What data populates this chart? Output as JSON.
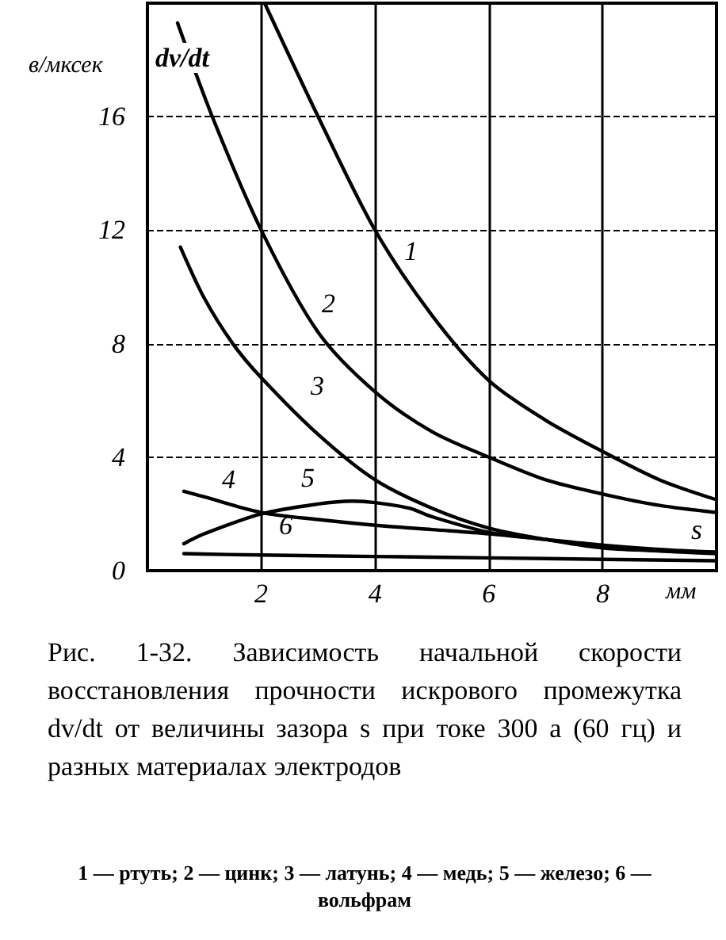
{
  "chart_data": {
    "type": "line",
    "ylabel": "в/мксек",
    "xlabel": "мм",
    "xlim": [
      0,
      10
    ],
    "ylim": [
      0,
      20
    ],
    "xticks": [
      2,
      4,
      6,
      8
    ],
    "yticks": [
      0,
      4,
      8,
      12,
      16
    ],
    "grid": true,
    "marker": "none",
    "line_style": "solid",
    "series": [
      {
        "color": "#000000",
        "x": [
          2.06,
          3,
          4,
          5,
          6,
          7,
          8,
          9,
          10
        ],
        "values": [
          20,
          16,
          12,
          9,
          6.7,
          5.3,
          4.2,
          3.2,
          2.5
        ]
      },
      {
        "color": "#000000",
        "x": [
          0.53,
          1.14,
          2,
          3,
          4,
          5,
          6,
          7,
          8,
          9,
          10
        ],
        "values": [
          19.3,
          16,
          12,
          8.4,
          6.3,
          4.9,
          4,
          3.2,
          2.7,
          2.3,
          2.05
        ]
      },
      {
        "color": "#000000",
        "x": [
          0.58,
          1,
          1.5,
          2,
          3,
          4,
          5,
          6,
          7,
          8,
          9,
          10
        ],
        "values": [
          11.4,
          9.6,
          8,
          6.8,
          4.8,
          3.2,
          2.2,
          1.5,
          1.1,
          0.8,
          0.7,
          0.65
        ]
      },
      {
        "color": "#000000",
        "x": [
          0.64,
          1,
          2,
          3,
          4,
          5,
          6,
          7,
          8,
          9,
          10
        ],
        "values": [
          2.8,
          2.6,
          2.05,
          1.8,
          1.6,
          1.45,
          1.3,
          1.1,
          0.9,
          0.75,
          0.65
        ]
      },
      {
        "color": "#000000",
        "x": [
          0.64,
          1,
          2,
          3,
          3.6,
          4,
          4.6,
          5,
          6,
          7,
          8,
          9,
          10
        ],
        "values": [
          0.95,
          1.3,
          2,
          2.35,
          2.45,
          2.4,
          2.2,
          1.9,
          1.35,
          1.1,
          0.85,
          0.7,
          0.6
        ]
      },
      {
        "color": "#000000",
        "x": [
          0.64,
          2,
          4,
          6,
          8,
          10
        ],
        "values": [
          0.6,
          0.55,
          0.5,
          0.45,
          0.4,
          0.35
        ]
      }
    ],
    "annotations": [
      "1",
      "2",
      "3",
      "4",
      "5",
      "6",
      "dv/dt",
      "s",
      "Рис. 1-32. Зависимость начальной скорости восстановления прочности искрового промежутка dv/dt от величины зазора s при токе 300 а (60 гц) и разных материалах электродов",
      "1 — ртуть; 2 — цинк; 3 — латунь; 4 — медь; 5 — железо; 6 — вольфрам"
    ]
  }
}
